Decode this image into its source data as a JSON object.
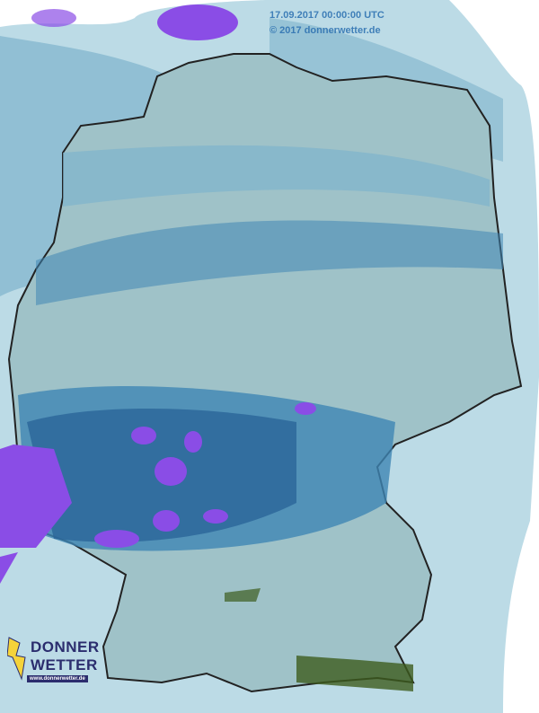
{
  "map": {
    "timestamp": "17.09.2017 00:00:00 UTC",
    "copyright": "© 2017 donnerwetter.de",
    "region": "Germany",
    "colors": {
      "land": "#9fc2c8",
      "light_precip": "#7fb3cc",
      "medium_precip": "#3f86b4",
      "heavy_precip": "#2a6599",
      "very_heavy_precip": "#8a4de6",
      "outside": "#bcdbe6",
      "snow_hail": "#3d5c1e"
    }
  },
  "logo": {
    "line1": "DONNER",
    "line2": "WETTER",
    "url": "www.donnerwetter.de"
  }
}
